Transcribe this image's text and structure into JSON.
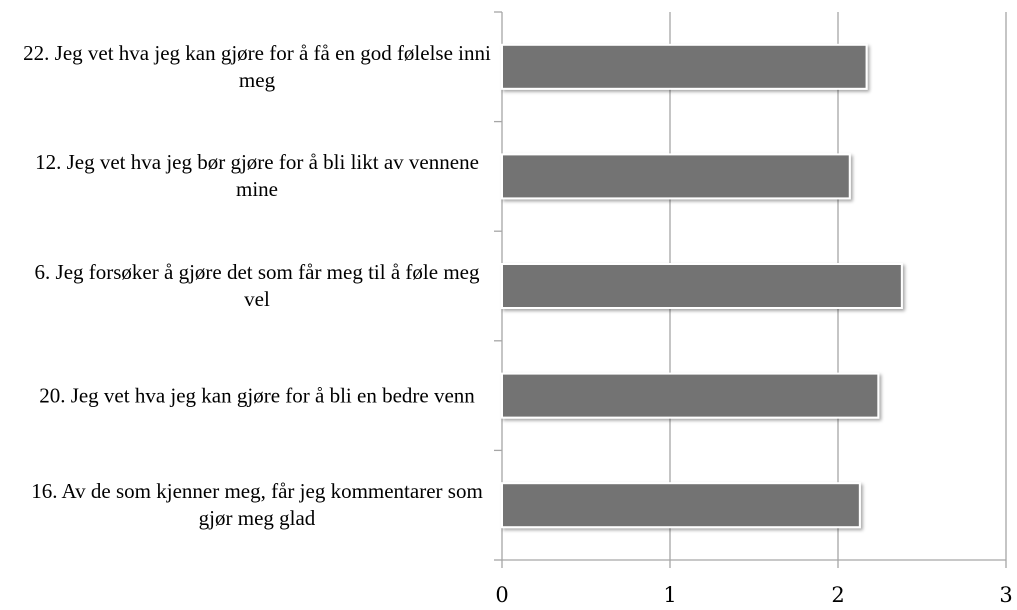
{
  "chart_data": {
    "type": "bar",
    "orientation": "horizontal",
    "categories": [
      "22. Jeg vet hva jeg kan gjøre for å få en god følelse inni meg",
      "12. Jeg vet hva jeg bør gjøre for å bli likt av vennene mine",
      "6. Jeg forsøker å gjøre det som får meg til å føle meg vel",
      "20. Jeg vet hva jeg kan gjøre for å bli en bedre venn",
      "16. Av de som kjenner meg, får jeg kommentarer som gjør meg glad"
    ],
    "values": [
      2.17,
      2.07,
      2.38,
      2.24,
      2.13
    ],
    "color": "#737373",
    "xlim": [
      0,
      3
    ],
    "xticks": [
      0,
      1,
      2,
      3
    ],
    "grid": true
  }
}
